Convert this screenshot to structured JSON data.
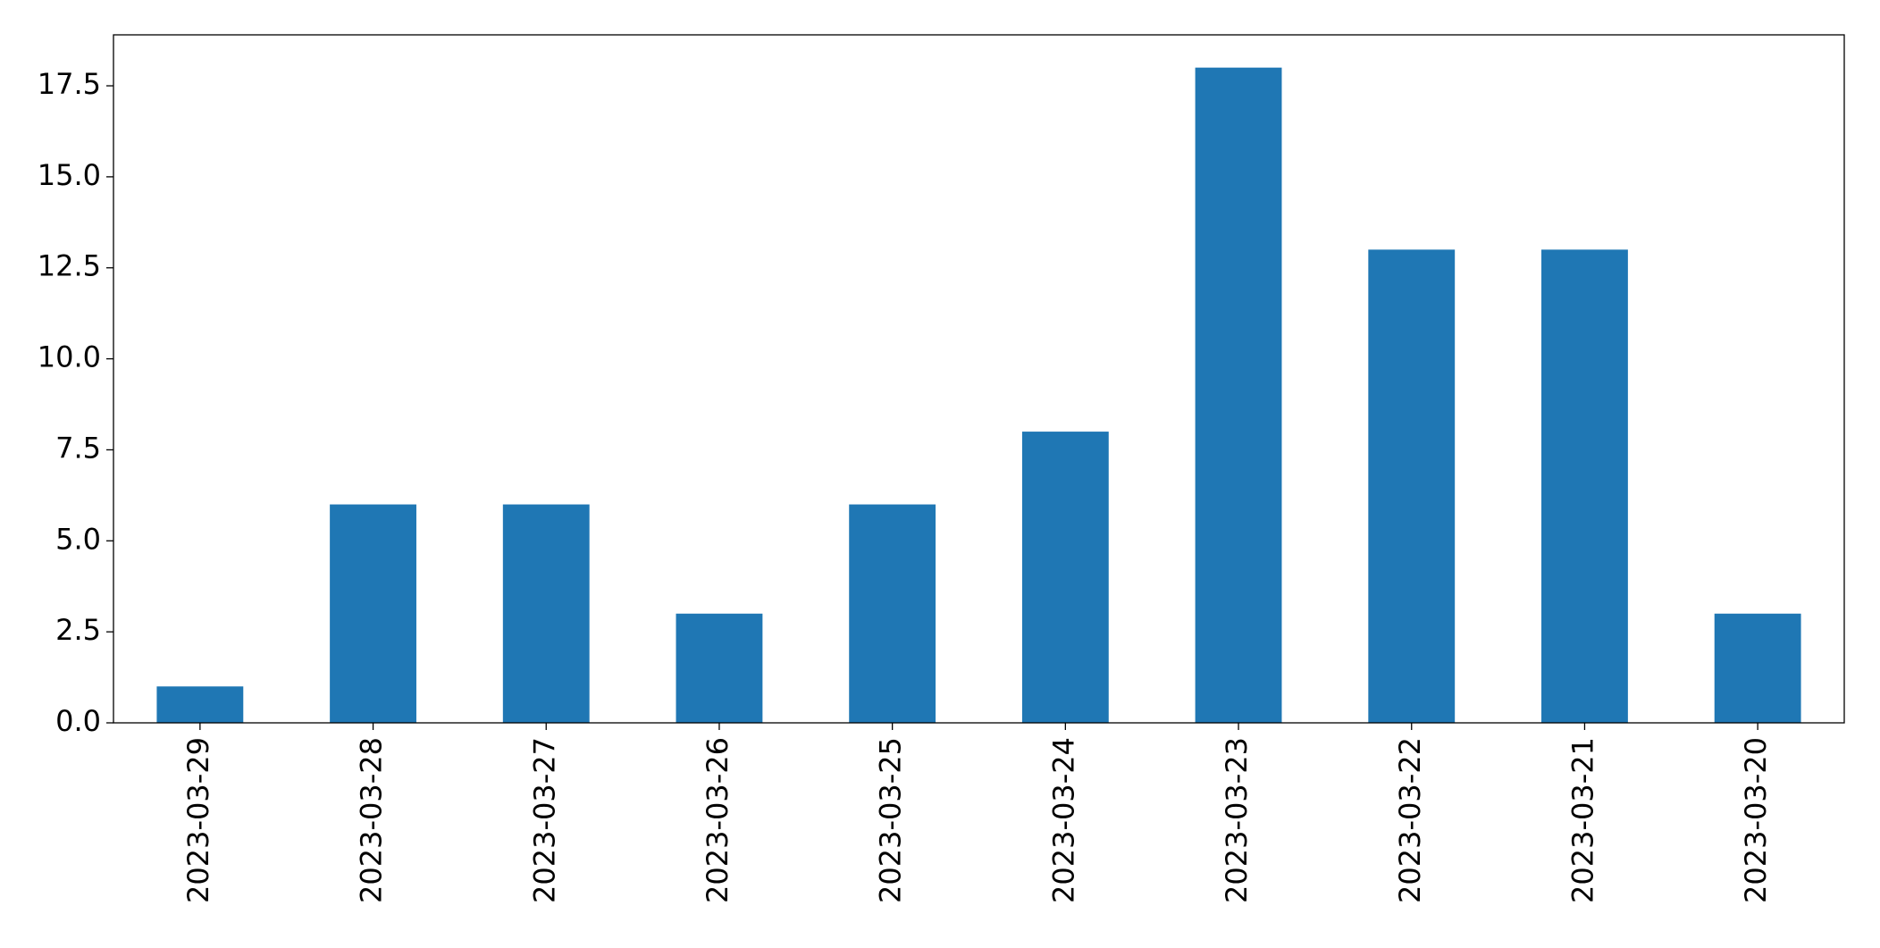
{
  "chart_data": {
    "type": "bar",
    "categories": [
      "2023-03-29",
      "2023-03-28",
      "2023-03-27",
      "2023-03-26",
      "2023-03-25",
      "2023-03-24",
      "2023-03-23",
      "2023-03-22",
      "2023-03-21",
      "2023-03-20"
    ],
    "values": [
      1,
      6,
      6,
      3,
      6,
      8,
      18,
      13,
      13,
      3
    ],
    "color": "#1f77b4",
    "ylim": [
      0,
      18.9
    ],
    "yticks": [
      {
        "value": 0,
        "label": "0.0"
      },
      2.5,
      {
        "value": 5,
        "label": "5.0"
      },
      7.5,
      {
        "value": 10,
        "label": "10.0"
      },
      12.5,
      {
        "value": 15,
        "label": "15.0"
      },
      17.5
    ],
    "grid": false
  }
}
